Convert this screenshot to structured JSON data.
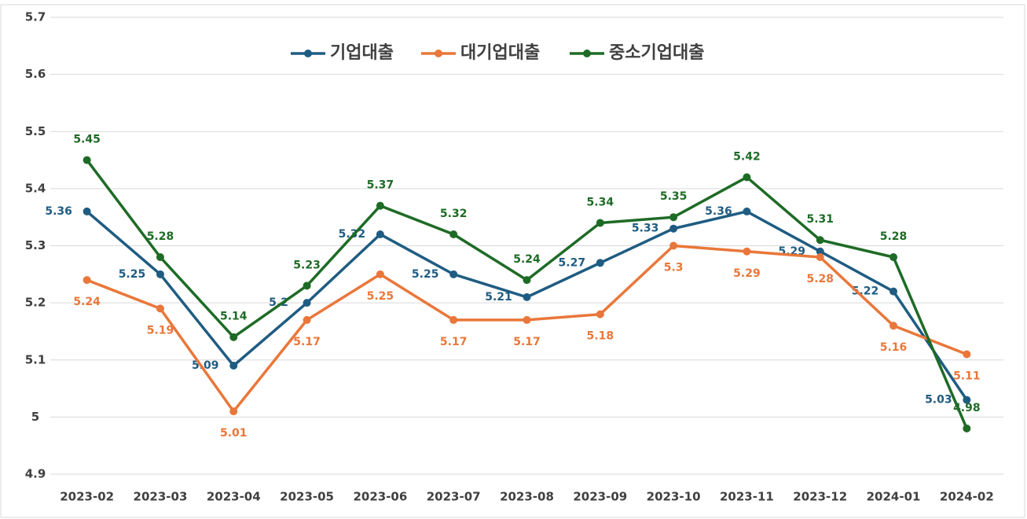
{
  "chart_data": {
    "type": "line",
    "categories": [
      "2023-02",
      "2023-03",
      "2023-04",
      "2023-05",
      "2023-06",
      "2023-07",
      "2023-08",
      "2023-09",
      "2023-10",
      "2023-11",
      "2023-12",
      "2024-01",
      "2024-02"
    ],
    "series": [
      {
        "name": "기업대출",
        "color": "#1f5c82",
        "values": [
          5.36,
          5.25,
          5.09,
          5.2,
          5.32,
          5.25,
          5.21,
          5.27,
          5.33,
          5.36,
          5.29,
          5.22,
          5.03
        ]
      },
      {
        "name": "대기업대출",
        "color": "#e9773a",
        "values": [
          5.24,
          5.19,
          5.01,
          5.17,
          5.25,
          5.17,
          5.17,
          5.18,
          5.3,
          5.29,
          5.28,
          5.16,
          5.11
        ]
      },
      {
        "name": "중소기업대출",
        "color": "#1e6b26",
        "values": [
          5.45,
          5.28,
          5.14,
          5.23,
          5.37,
          5.32,
          5.24,
          5.34,
          5.35,
          5.42,
          5.31,
          5.28,
          4.98
        ]
      }
    ],
    "ylim": [
      4.9,
      5.7
    ],
    "yticks": [
      4.9,
      5,
      5.1,
      5.2,
      5.3,
      5.4,
      5.5,
      5.6,
      5.7
    ],
    "grid": true,
    "legend": "top"
  }
}
